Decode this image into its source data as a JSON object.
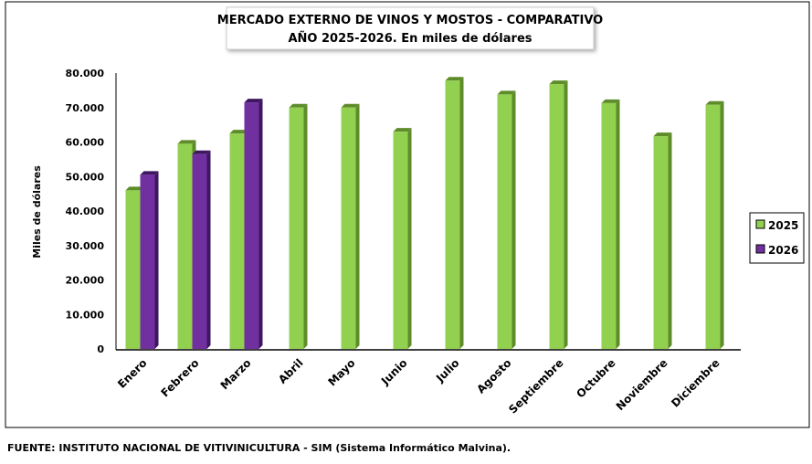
{
  "chart_data": {
    "type": "bar",
    "title_line1": "MERCADO EXTERNO DE VINOS Y MOSTOS - COMPARATIVO",
    "title_line2": "AÑO 2025-2026. En miles de dólares",
    "xlabel": "",
    "ylabel": "Miles de dólares",
    "ylim": [
      0,
      80000
    ],
    "yticks": [
      0,
      10000,
      20000,
      30000,
      40000,
      50000,
      60000,
      70000,
      80000
    ],
    "ytick_labels": [
      "0",
      "10.000",
      "20.000",
      "30.000",
      "40.000",
      "50.000",
      "60.000",
      "70.000",
      "80.000"
    ],
    "categories": [
      "Enero",
      "Febrero",
      "Marzo",
      "Abril",
      "Mayo",
      "Junio",
      "Julio",
      "Agosto",
      "Septiembre",
      "Octubre",
      "Noviembre",
      "Diciembre"
    ],
    "series": [
      {
        "name": "2025",
        "color": "#92D050",
        "side": "#5E8C2A",
        "values": [
          46000,
          59500,
          62500,
          70000,
          70000,
          63000,
          77800,
          73800,
          76800,
          71300,
          61700,
          70800
        ]
      },
      {
        "name": "2026",
        "color": "#7030A0",
        "side": "#3E1760",
        "values": [
          50500,
          56500,
          71500,
          null,
          null,
          null,
          null,
          null,
          null,
          null,
          null,
          null
        ]
      }
    ],
    "legend_position": "right",
    "grid": false
  },
  "source": "FUENTE: INSTITUTO NACIONAL DE VITIVINICULTURA - SIM (Sistema Informático Malvina)."
}
